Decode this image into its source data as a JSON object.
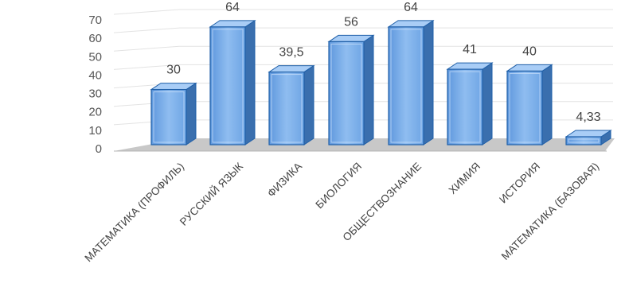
{
  "chart_data": {
    "type": "bar",
    "style": "3d-column",
    "title": "",
    "xlabel": "",
    "ylabel": "",
    "ylim": [
      0,
      70
    ],
    "y_ticks": [
      0,
      10,
      20,
      30,
      40,
      50,
      60,
      70
    ],
    "grid": true,
    "legend": "none",
    "categories": [
      "МАТЕМАТИКА (ПРОФИЛЬ)",
      "РУССКИЙ ЯЗЫК",
      "ФИЗИКА",
      "БИОЛОГИЯ",
      "ОБЩЕСТВОЗНАНИЕ",
      "ХИМИЯ",
      "ИСТОРИЯ",
      "МАТЕМАТИКА (БАЗОВАЯ)"
    ],
    "values": [
      30,
      64,
      39.5,
      56,
      64,
      41,
      40,
      4.33
    ],
    "data_labels": [
      "30",
      "64",
      "39,5",
      "56",
      "64",
      "41",
      "40",
      "4,33"
    ],
    "colors": {
      "bar_front": "#7fb0ea",
      "bar_side": "#3a6fae",
      "bar_top": "#a9cdf6",
      "bar_edge": "#1f5fa8",
      "floor": "#c8c8c8",
      "grid": "#e3e3e3",
      "text": "#444444"
    }
  }
}
